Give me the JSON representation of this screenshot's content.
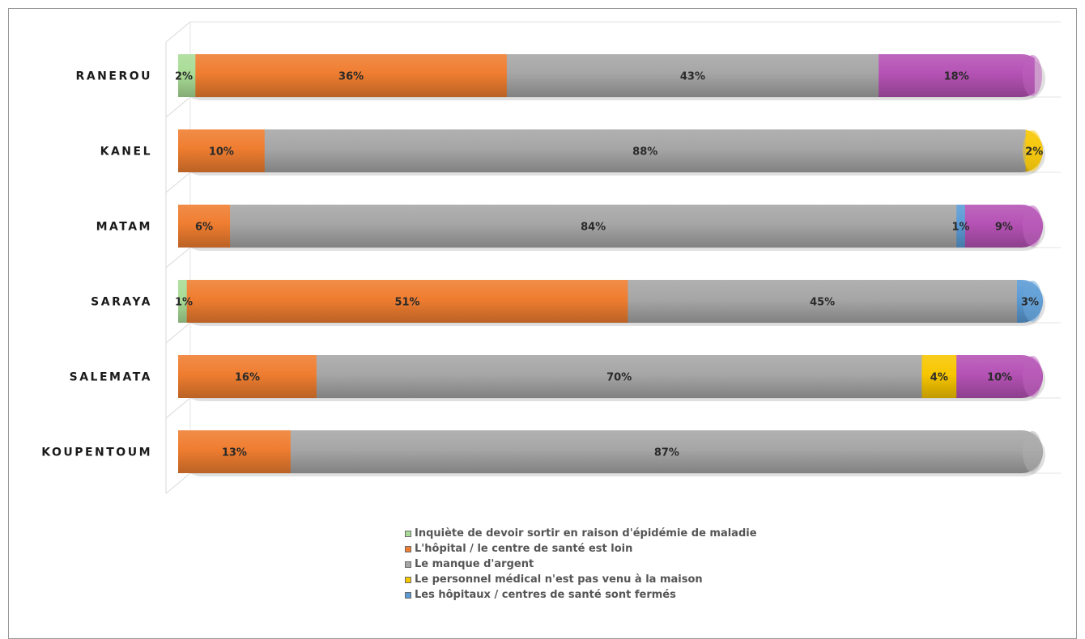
{
  "chart_data": {
    "type": "bar",
    "orientation": "horizontal",
    "stacked": true,
    "percent_stacked": true,
    "categories": [
      "RANEROU",
      "KANEL",
      "MATAM",
      "SARAYA",
      "SALEMATA",
      "KOUPENTOUM"
    ],
    "series": [
      {
        "name": "Inquiète de devoir sortir en raison d'épidémie de maladie",
        "color": "#a9dc96",
        "values": [
          2,
          0,
          0,
          1,
          0,
          0
        ]
      },
      {
        "name": "L'hôpital / le centre de santé est loin",
        "color": "#ef7d30",
        "values": [
          36,
          10,
          6,
          51,
          16,
          13
        ]
      },
      {
        "name": "Le manque d'argent",
        "color": "#a6a6a6",
        "values": [
          43,
          88,
          84,
          45,
          70,
          87
        ]
      },
      {
        "name": "Le personnel médical n'est pas venu à la maison",
        "color": "#f7c600",
        "values": [
          0,
          2,
          0,
          0,
          4,
          0
        ]
      },
      {
        "name": "Les hôpitaux / centres de santé sont fermés",
        "color": "#5b9bd5",
        "values": [
          0,
          0,
          1,
          3,
          0,
          0
        ]
      },
      {
        "name": "",
        "color": "#b552b5",
        "values": [
          18,
          0,
          9,
          0,
          10,
          0
        ]
      }
    ],
    "data_labels": true,
    "grid": true,
    "legend_position": "bottom"
  },
  "legend_items": [
    {
      "label": "Inquiète de devoir sortir en raison d'épidémie de maladie",
      "color": "#a9dc96"
    },
    {
      "label": "L'hôpital / le centre de santé est loin",
      "color": "#ef7d30"
    },
    {
      "label": "Le manque d'argent",
      "color": "#a6a6a6"
    },
    {
      "label": "Le personnel médical n'est pas venu à la maison",
      "color": "#f7c600"
    },
    {
      "label": "Les hôpitaux / centres de santé sont fermés",
      "color": "#5b9bd5"
    }
  ]
}
